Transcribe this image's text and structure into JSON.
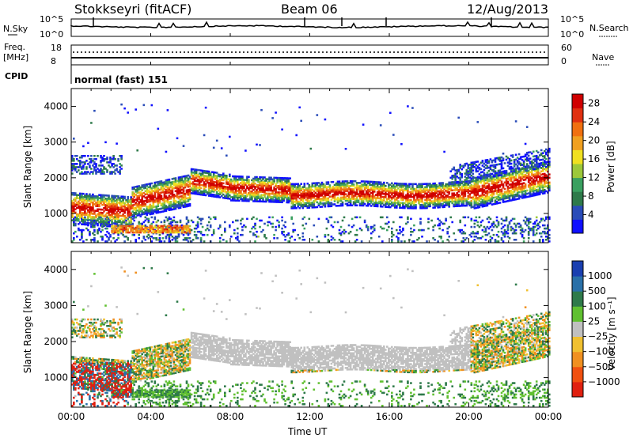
{
  "header": {
    "station": "Stokkseyri (fitACF)",
    "beam": "Beam 06",
    "date": "12/Aug/2013"
  },
  "top_panels": {
    "nsky_label": "N.Sky",
    "nsky_ticks": [
      "10^5",
      "10^0"
    ],
    "nsearch_label": "N.Search",
    "nsearch_ticks": [
      "10^5",
      "10^0"
    ],
    "freq_label_1": "Freq.",
    "freq_label_2": "[MHz]",
    "freq_ticks": [
      "18",
      "8"
    ],
    "nave_label": "Nave",
    "nave_ticks": [
      "60",
      "0"
    ],
    "cpid_label": "CPID",
    "cpid_value": "normal (fast) 151"
  },
  "chart_data": [
    {
      "type": "heatmap",
      "name": "power-panel",
      "ylabel": "Slant Range [km]",
      "ylim": [
        180,
        4500
      ],
      "yticks": [
        "1000",
        "2000",
        "3000",
        "4000"
      ],
      "x_hours": [
        0,
        24
      ],
      "xtick_labels": [
        "00:00",
        "04:00",
        "08:00",
        "12:00",
        "16:00",
        "20:00",
        "00:00"
      ],
      "colorbar": {
        "label": "Power [dB]",
        "ticks": [
          "4",
          "8",
          "12",
          "16",
          "20",
          "24",
          "28"
        ],
        "range": [
          0,
          30
        ],
        "colors": [
          "#1010ff",
          "#2a4cb8",
          "#2e7a4a",
          "#3aa060",
          "#9cc83a",
          "#f0e020",
          "#f0a020",
          "#f07010",
          "#e03010",
          "#d00000"
        ]
      }
    },
    {
      "type": "heatmap",
      "name": "velocity-panel",
      "ylabel": "Slant Range [km]",
      "ylim": [
        180,
        4500
      ],
      "yticks": [
        "1000",
        "2000",
        "3000",
        "4000"
      ],
      "xlabel": "Time UT",
      "x_hours": [
        0,
        24
      ],
      "xtick_labels": [
        "00:00",
        "04:00",
        "08:00",
        "12:00",
        "16:00",
        "20:00",
        "00:00"
      ],
      "colorbar": {
        "label": "Velocity [m s⁻¹]",
        "ticks": [
          "1000",
          "500",
          "100",
          "25",
          "−25",
          "−100",
          "−500",
          "−1000"
        ],
        "colors": [
          "#1a3fb0",
          "#2a70a8",
          "#2e7a4a",
          "#60c030",
          "#c0c0c0",
          "#f0c030",
          "#f09020",
          "#f05010",
          "#e02010"
        ]
      }
    }
  ]
}
